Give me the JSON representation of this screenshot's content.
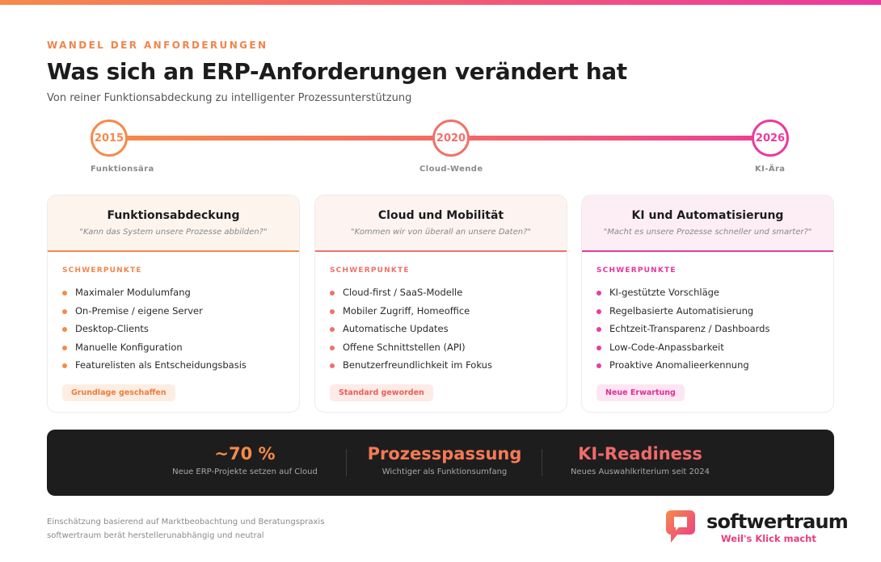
{
  "eyebrow": "WANDEL DER ANFORDERUNGEN",
  "title": "Was sich an ERP-Anforderungen verändert hat",
  "subtitle": "Von reiner Funktionsabdeckung zu intelligenter Prozessunterstützung",
  "timeline": [
    {
      "year": "2015",
      "label": "Funktionsära"
    },
    {
      "year": "2020",
      "label": "Cloud-Wende"
    },
    {
      "year": "2026",
      "label": "KI-Ära"
    }
  ],
  "colors": {
    "orange": "#f68a4a",
    "coral": "#f2706a",
    "pink": "#ea3aa0",
    "dark": "#1e1d1d"
  },
  "cards": [
    {
      "title": "Funktionsabdeckung",
      "quote": "\"Kann das System unsere Prozesse abbilden?\"",
      "focus_label": "SCHWERPUNKTE",
      "items": [
        "Maximaler Modulumfang",
        "On-Premise / eigene Server",
        "Desktop-Clients",
        "Manuelle Konfiguration",
        "Featurelisten als Entscheidungsbasis"
      ],
      "badge": "Grundlage geschaffen"
    },
    {
      "title": "Cloud und Mobilität",
      "quote": "\"Kommen wir von überall an unsere Daten?\"",
      "focus_label": "SCHWERPUNKTE",
      "items": [
        "Cloud-first / SaaS-Modelle",
        "Mobiler Zugriff, Homeoffice",
        "Automatische Updates",
        "Offene Schnittstellen (API)",
        "Benutzerfreundlichkeit im Fokus"
      ],
      "badge": "Standard geworden"
    },
    {
      "title": "KI und Automatisierung",
      "quote": "\"Macht es unsere Prozesse schneller und smarter?\"",
      "focus_label": "SCHWERPUNKTE",
      "items": [
        "KI-gestützte Vorschläge",
        "Regelbasierte Automatisierung",
        "Echtzeit-Transparenz / Dashboards",
        "Low-Code-Anpassbarkeit",
        "Proaktive Anomalieerkennung"
      ],
      "badge": "Neue Erwartung"
    }
  ],
  "stats": [
    {
      "value": "~70 %",
      "desc": "Neue ERP-Projekte setzen auf Cloud"
    },
    {
      "value": "Prozesspassung",
      "desc": "Wichtiger als Funktionsumfang"
    },
    {
      "value": "KI-Readiness",
      "desc": "Neues Auswahlkriterium seit 2024"
    }
  ],
  "footer": {
    "note1": "Einschätzung basierend auf Marktbeobachtung und Beratungspraxis",
    "note2": "softwertraum berät herstellerunabhängig und neutral"
  },
  "logo": {
    "wordmark": "softwertraum",
    "tagline": "Weil's Klick macht",
    "icon": "speech-bubble-logo-icon"
  }
}
